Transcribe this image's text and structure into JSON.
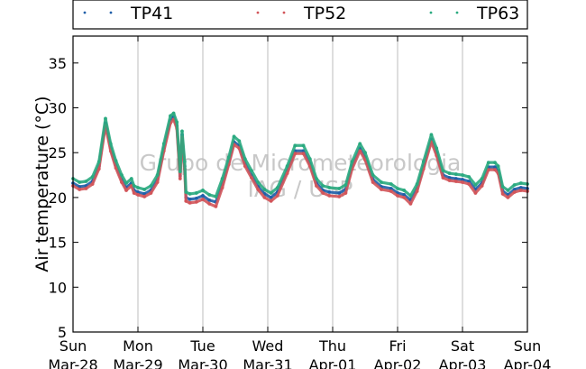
{
  "chart_data": {
    "type": "line",
    "title": "",
    "xlabel": "",
    "ylabel": "Air temperature (°C)",
    "ylim": [
      5,
      38
    ],
    "yticks": [
      5,
      10,
      15,
      20,
      25,
      30,
      35
    ],
    "xlim": [
      0,
      7
    ],
    "xticks": [
      {
        "x": 0,
        "day": "Sun",
        "date": "Mar-28"
      },
      {
        "x": 1,
        "day": "Mon",
        "date": "Mar-29"
      },
      {
        "x": 2,
        "day": "Tue",
        "date": "Mar-30"
      },
      {
        "x": 3,
        "day": "Wed",
        "date": "Mar-31"
      },
      {
        "x": 4,
        "day": "Thu",
        "date": "Apr-01"
      },
      {
        "x": 5,
        "day": "Fri",
        "date": "Apr-02"
      },
      {
        "x": 6,
        "day": "Sat",
        "date": "Apr-03"
      },
      {
        "x": 7,
        "day": "Sun",
        "date": "Apr-04"
      }
    ],
    "grid": "vertical",
    "legend": "top",
    "watermark": [
      "Grupo de Micrometeorologia",
      "IAG / USP"
    ],
    "series": [
      {
        "name": "TP41",
        "color": "#1f5fa8",
        "points": [
          [
            0.0,
            21.6
          ],
          [
            0.1,
            21.2
          ],
          [
            0.2,
            21.3
          ],
          [
            0.3,
            21.8
          ],
          [
            0.4,
            23.5
          ],
          [
            0.5,
            28.3
          ],
          [
            0.58,
            25.5
          ],
          [
            0.66,
            23.6
          ],
          [
            0.75,
            22.0
          ],
          [
            0.82,
            21.1
          ],
          [
            0.9,
            21.6
          ],
          [
            0.94,
            20.8
          ],
          [
            1.0,
            20.6
          ],
          [
            1.1,
            20.4
          ],
          [
            1.2,
            20.8
          ],
          [
            1.3,
            22.0
          ],
          [
            1.4,
            25.5
          ],
          [
            1.5,
            28.6
          ],
          [
            1.55,
            29.0
          ],
          [
            1.6,
            28.0
          ],
          [
            1.65,
            22.4
          ],
          [
            1.68,
            27.0
          ],
          [
            1.72,
            23.5
          ],
          [
            1.74,
            20.0
          ],
          [
            1.8,
            19.8
          ],
          [
            1.9,
            19.9
          ],
          [
            2.0,
            20.2
          ],
          [
            2.1,
            19.7
          ],
          [
            2.2,
            19.5
          ],
          [
            2.3,
            21.5
          ],
          [
            2.4,
            24.0
          ],
          [
            2.48,
            26.2
          ],
          [
            2.56,
            25.8
          ],
          [
            2.65,
            23.8
          ],
          [
            2.75,
            22.5
          ],
          [
            2.85,
            21.2
          ],
          [
            2.95,
            20.4
          ],
          [
            3.05,
            20.0
          ],
          [
            3.15,
            20.6
          ],
          [
            3.3,
            23.0
          ],
          [
            3.42,
            25.2
          ],
          [
            3.55,
            25.2
          ],
          [
            3.65,
            23.8
          ],
          [
            3.75,
            21.6
          ],
          [
            3.85,
            20.8
          ],
          [
            3.95,
            20.6
          ],
          [
            4.1,
            20.5
          ],
          [
            4.2,
            20.9
          ],
          [
            4.3,
            23.5
          ],
          [
            4.42,
            25.5
          ],
          [
            4.5,
            24.5
          ],
          [
            4.62,
            22.0
          ],
          [
            4.75,
            21.2
          ],
          [
            4.9,
            21.0
          ],
          [
            5.0,
            20.5
          ],
          [
            5.1,
            20.3
          ],
          [
            5.2,
            19.7
          ],
          [
            5.3,
            21.0
          ],
          [
            5.4,
            23.5
          ],
          [
            5.52,
            26.5
          ],
          [
            5.6,
            25.0
          ],
          [
            5.7,
            22.5
          ],
          [
            5.8,
            22.2
          ],
          [
            5.9,
            22.1
          ],
          [
            6.0,
            22.0
          ],
          [
            6.1,
            21.8
          ],
          [
            6.2,
            20.9
          ],
          [
            6.3,
            21.6
          ],
          [
            6.4,
            23.4
          ],
          [
            6.5,
            23.4
          ],
          [
            6.55,
            23.0
          ],
          [
            6.62,
            20.7
          ],
          [
            6.7,
            20.3
          ],
          [
            6.8,
            20.9
          ],
          [
            6.9,
            21.1
          ],
          [
            7.0,
            21.0
          ]
        ]
      },
      {
        "name": "TP52",
        "color": "#d2555a",
        "points": [
          [
            0.0,
            21.3
          ],
          [
            0.1,
            20.9
          ],
          [
            0.2,
            21.0
          ],
          [
            0.3,
            21.5
          ],
          [
            0.4,
            23.2
          ],
          [
            0.5,
            28.0
          ],
          [
            0.58,
            25.2
          ],
          [
            0.66,
            23.3
          ],
          [
            0.75,
            21.7
          ],
          [
            0.82,
            20.8
          ],
          [
            0.9,
            21.3
          ],
          [
            0.94,
            20.5
          ],
          [
            1.0,
            20.3
          ],
          [
            1.1,
            20.1
          ],
          [
            1.2,
            20.5
          ],
          [
            1.3,
            21.7
          ],
          [
            1.4,
            25.2
          ],
          [
            1.5,
            28.3
          ],
          [
            1.55,
            28.7
          ],
          [
            1.6,
            27.7
          ],
          [
            1.65,
            22.1
          ],
          [
            1.68,
            26.7
          ],
          [
            1.72,
            23.2
          ],
          [
            1.74,
            19.6
          ],
          [
            1.8,
            19.4
          ],
          [
            1.9,
            19.5
          ],
          [
            2.0,
            19.8
          ],
          [
            2.1,
            19.3
          ],
          [
            2.2,
            19.0
          ],
          [
            2.3,
            21.1
          ],
          [
            2.4,
            23.7
          ],
          [
            2.48,
            25.9
          ],
          [
            2.56,
            25.5
          ],
          [
            2.65,
            23.5
          ],
          [
            2.75,
            22.2
          ],
          [
            2.85,
            20.9
          ],
          [
            2.95,
            20.0
          ],
          [
            3.05,
            19.6
          ],
          [
            3.15,
            20.2
          ],
          [
            3.3,
            22.7
          ],
          [
            3.42,
            24.9
          ],
          [
            3.55,
            24.9
          ],
          [
            3.65,
            23.5
          ],
          [
            3.75,
            21.3
          ],
          [
            3.85,
            20.5
          ],
          [
            3.95,
            20.2
          ],
          [
            4.1,
            20.1
          ],
          [
            4.2,
            20.5
          ],
          [
            4.3,
            23.2
          ],
          [
            4.42,
            25.2
          ],
          [
            4.5,
            24.2
          ],
          [
            4.62,
            21.7
          ],
          [
            4.75,
            20.9
          ],
          [
            4.9,
            20.7
          ],
          [
            5.0,
            20.2
          ],
          [
            5.1,
            20.0
          ],
          [
            5.2,
            19.3
          ],
          [
            5.3,
            20.7
          ],
          [
            5.4,
            23.2
          ],
          [
            5.52,
            26.2
          ],
          [
            5.6,
            24.7
          ],
          [
            5.7,
            22.2
          ],
          [
            5.8,
            21.9
          ],
          [
            5.9,
            21.8
          ],
          [
            6.0,
            21.7
          ],
          [
            6.1,
            21.5
          ],
          [
            6.2,
            20.5
          ],
          [
            6.3,
            21.3
          ],
          [
            6.4,
            23.1
          ],
          [
            6.5,
            23.1
          ],
          [
            6.55,
            22.7
          ],
          [
            6.62,
            20.4
          ],
          [
            6.7,
            20.0
          ],
          [
            6.8,
            20.6
          ],
          [
            6.9,
            20.8
          ],
          [
            7.0,
            20.7
          ]
        ]
      },
      {
        "name": "TP63",
        "color": "#2aaa80",
        "points": [
          [
            0.0,
            22.1
          ],
          [
            0.1,
            21.7
          ],
          [
            0.2,
            21.8
          ],
          [
            0.3,
            22.3
          ],
          [
            0.4,
            24.0
          ],
          [
            0.5,
            28.8
          ],
          [
            0.58,
            26.0
          ],
          [
            0.66,
            24.1
          ],
          [
            0.75,
            22.5
          ],
          [
            0.82,
            21.6
          ],
          [
            0.9,
            22.1
          ],
          [
            0.94,
            21.3
          ],
          [
            1.0,
            21.1
          ],
          [
            1.1,
            20.9
          ],
          [
            1.2,
            21.3
          ],
          [
            1.3,
            22.5
          ],
          [
            1.4,
            26.0
          ],
          [
            1.5,
            29.1
          ],
          [
            1.55,
            29.4
          ],
          [
            1.6,
            28.4
          ],
          [
            1.65,
            22.9
          ],
          [
            1.68,
            27.4
          ],
          [
            1.72,
            24.0
          ],
          [
            1.74,
            20.6
          ],
          [
            1.8,
            20.4
          ],
          [
            1.9,
            20.5
          ],
          [
            2.0,
            20.8
          ],
          [
            2.1,
            20.3
          ],
          [
            2.2,
            20.1
          ],
          [
            2.3,
            22.1
          ],
          [
            2.4,
            24.5
          ],
          [
            2.48,
            26.8
          ],
          [
            2.56,
            26.3
          ],
          [
            2.65,
            24.3
          ],
          [
            2.75,
            23.0
          ],
          [
            2.85,
            21.7
          ],
          [
            2.95,
            20.9
          ],
          [
            3.05,
            20.5
          ],
          [
            3.15,
            21.1
          ],
          [
            3.3,
            23.5
          ],
          [
            3.42,
            25.8
          ],
          [
            3.55,
            25.8
          ],
          [
            3.65,
            24.3
          ],
          [
            3.75,
            22.1
          ],
          [
            3.85,
            21.3
          ],
          [
            3.95,
            21.1
          ],
          [
            4.1,
            21.0
          ],
          [
            4.2,
            21.4
          ],
          [
            4.3,
            24.0
          ],
          [
            4.42,
            26.0
          ],
          [
            4.5,
            25.0
          ],
          [
            4.62,
            22.5
          ],
          [
            4.75,
            21.7
          ],
          [
            4.9,
            21.5
          ],
          [
            5.0,
            21.0
          ],
          [
            5.1,
            20.8
          ],
          [
            5.2,
            20.2
          ],
          [
            5.3,
            21.5
          ],
          [
            5.4,
            24.0
          ],
          [
            5.52,
            27.0
          ],
          [
            5.6,
            25.5
          ],
          [
            5.7,
            23.0
          ],
          [
            5.8,
            22.7
          ],
          [
            5.9,
            22.6
          ],
          [
            6.0,
            22.5
          ],
          [
            6.1,
            22.3
          ],
          [
            6.2,
            21.4
          ],
          [
            6.3,
            22.1
          ],
          [
            6.4,
            23.9
          ],
          [
            6.5,
            23.9
          ],
          [
            6.55,
            23.5
          ],
          [
            6.62,
            21.2
          ],
          [
            6.7,
            20.8
          ],
          [
            6.8,
            21.4
          ],
          [
            6.9,
            21.6
          ],
          [
            7.0,
            21.5
          ]
        ]
      }
    ]
  }
}
